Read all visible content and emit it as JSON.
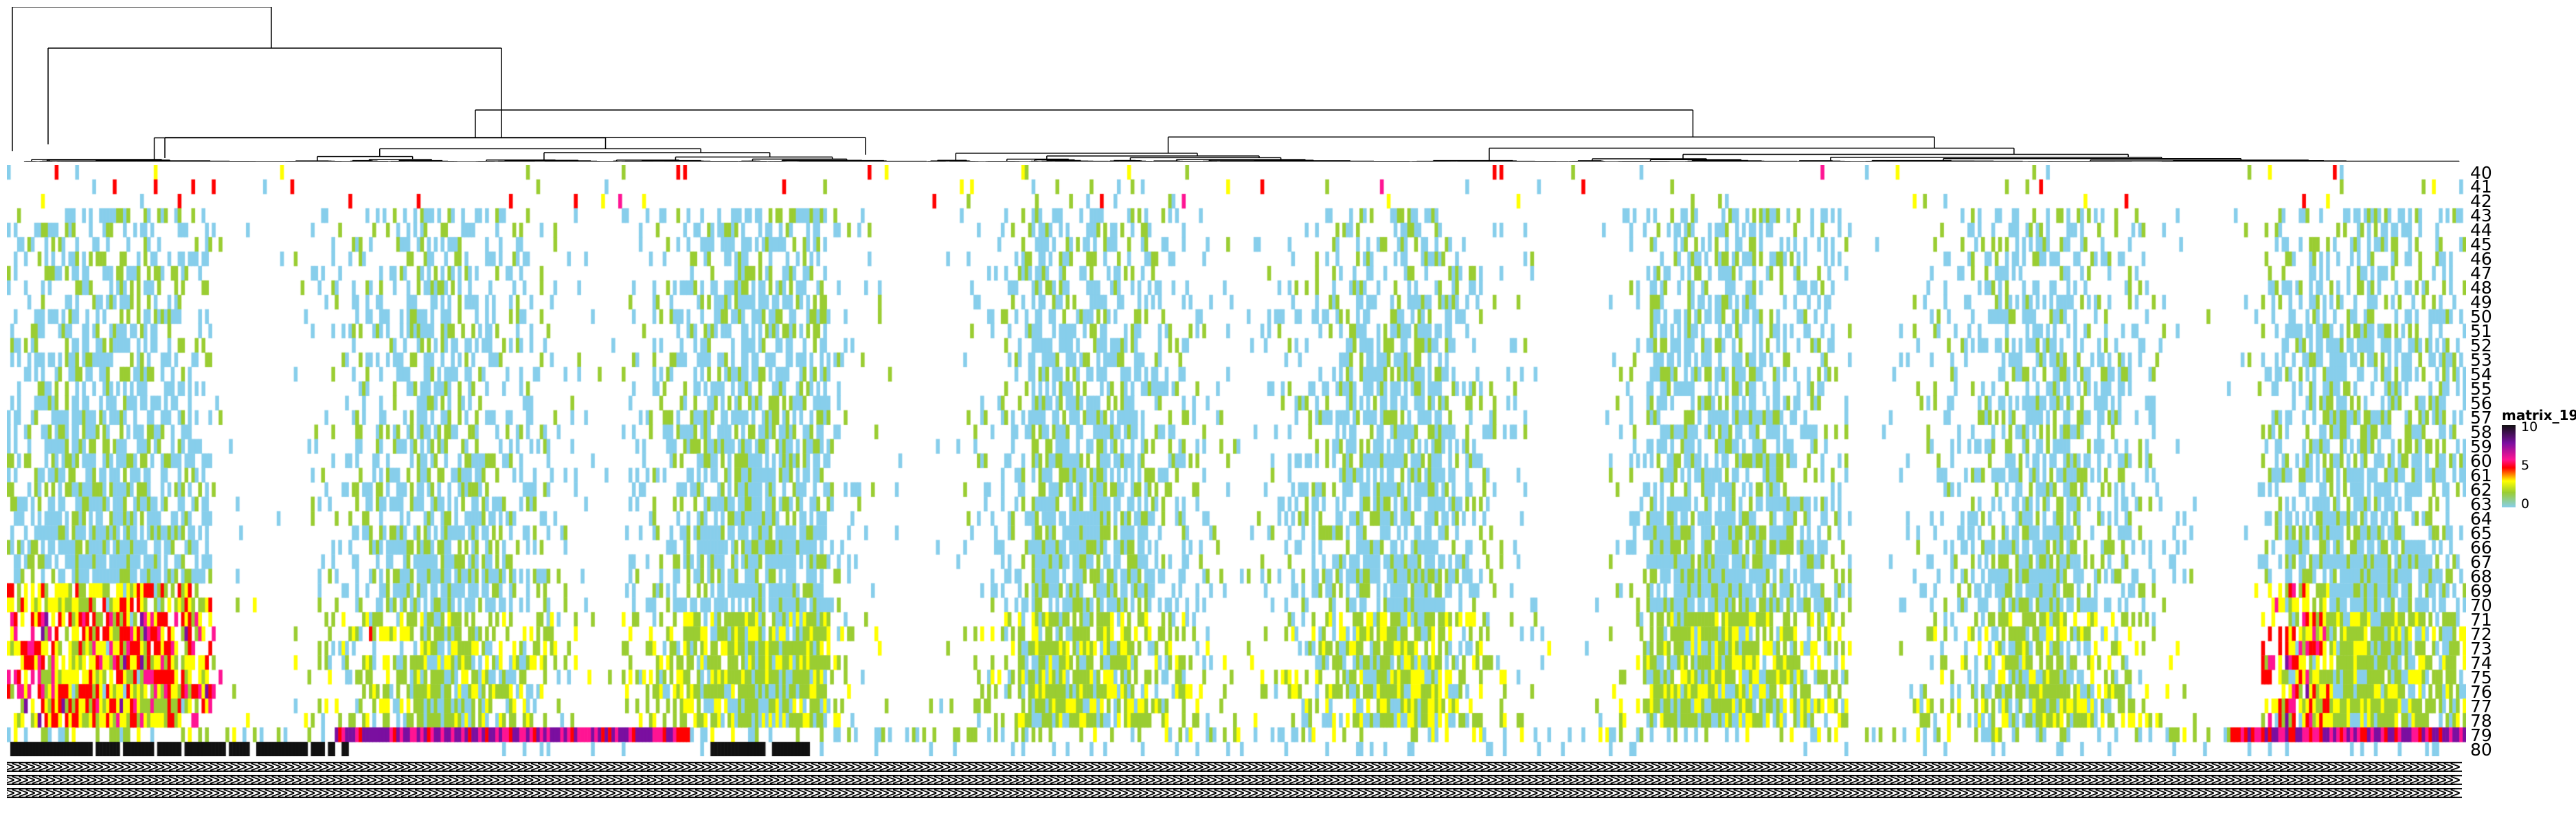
{
  "chart_data": {
    "type": "heatmap",
    "rows": [
      "40",
      "41",
      "42",
      "43",
      "44",
      "45",
      "46",
      "47",
      "48",
      "49",
      "50",
      "51",
      "52",
      "53",
      "54",
      "55",
      "56",
      "57",
      "58",
      "59",
      "60",
      "61",
      "62",
      "63",
      "64",
      "65",
      "66",
      "67",
      "68",
      "69",
      "70",
      "71",
      "72",
      "73",
      "74",
      "75",
      "76",
      "77",
      "78",
      "79",
      "80"
    ],
    "legend": {
      "title": "matrix_19",
      "ticks": [
        "10",
        "5",
        "0"
      ],
      "range": [
        0,
        10
      ]
    },
    "column_dendrogram": true,
    "row_labels_position": "right",
    "legend_position": "right",
    "colors": {
      "0": "#87ceeb",
      "2": "#9acd32",
      "4": "#ffff00",
      "5": "#ff0000",
      "6": "#ff1493",
      "8": "#7a0fa0",
      "10": "#111111"
    }
  }
}
